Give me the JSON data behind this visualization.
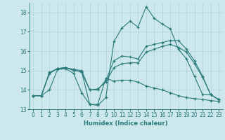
{
  "xlabel": "Humidex (Indice chaleur)",
  "bg_color": "#cce8ec",
  "grid_color": "#b0d4d8",
  "line_color": "#2a7a7a",
  "xlim": [
    -0.5,
    23.5
  ],
  "ylim": [
    13,
    18.5
  ],
  "yticks": [
    13,
    14,
    15,
    16,
    17,
    18
  ],
  "xticks": [
    0,
    1,
    2,
    3,
    4,
    5,
    6,
    7,
    8,
    9,
    10,
    11,
    12,
    13,
    14,
    15,
    16,
    17,
    18,
    19,
    20,
    21,
    22,
    23
  ],
  "line1_x": [
    0,
    1,
    2,
    3,
    4,
    5,
    6,
    7,
    8,
    9,
    10,
    11,
    12,
    13,
    14,
    15,
    16,
    17,
    18,
    19,
    20,
    21,
    22,
    23
  ],
  "line1_y": [
    13.7,
    13.7,
    14.9,
    15.1,
    15.15,
    15.0,
    14.95,
    13.25,
    13.2,
    13.6,
    16.5,
    17.2,
    17.55,
    17.25,
    18.3,
    17.7,
    17.4,
    17.15,
    16.1,
    15.6,
    14.7,
    13.75,
    13.75,
    13.5
  ],
  "line2_x": [
    0,
    1,
    2,
    3,
    4,
    5,
    6,
    7,
    8,
    9,
    10,
    11,
    12,
    13,
    14,
    15,
    16,
    17,
    18,
    19,
    20,
    21,
    22,
    23
  ],
  "line2_y": [
    13.7,
    13.7,
    14.85,
    15.1,
    15.15,
    15.05,
    14.9,
    14.0,
    14.0,
    14.5,
    15.5,
    15.75,
    15.7,
    15.6,
    16.25,
    16.35,
    16.45,
    16.55,
    16.55,
    16.1,
    15.5,
    14.7,
    13.75,
    13.5
  ],
  "line3_x": [
    0,
    1,
    2,
    3,
    4,
    5,
    6,
    7,
    8,
    9,
    10,
    11,
    12,
    13,
    14,
    15,
    16,
    17,
    18,
    19,
    20,
    21,
    22,
    23
  ],
  "line3_y": [
    13.7,
    13.7,
    14.85,
    15.1,
    15.15,
    15.05,
    15.0,
    14.0,
    14.05,
    14.4,
    15.15,
    15.35,
    15.4,
    15.4,
    15.95,
    16.1,
    16.25,
    16.35,
    16.2,
    15.95,
    15.35,
    14.65,
    13.75,
    13.5
  ],
  "line4_x": [
    0,
    1,
    2,
    3,
    4,
    5,
    6,
    7,
    8,
    9,
    10,
    11,
    12,
    13,
    14,
    15,
    16,
    17,
    18,
    19,
    20,
    21,
    22,
    23
  ],
  "line4_y": [
    13.7,
    13.7,
    14.0,
    15.05,
    15.1,
    14.85,
    13.85,
    13.25,
    13.25,
    14.6,
    14.45,
    14.5,
    14.5,
    14.4,
    14.2,
    14.1,
    14.0,
    13.85,
    13.7,
    13.6,
    13.55,
    13.5,
    13.45,
    13.4
  ]
}
